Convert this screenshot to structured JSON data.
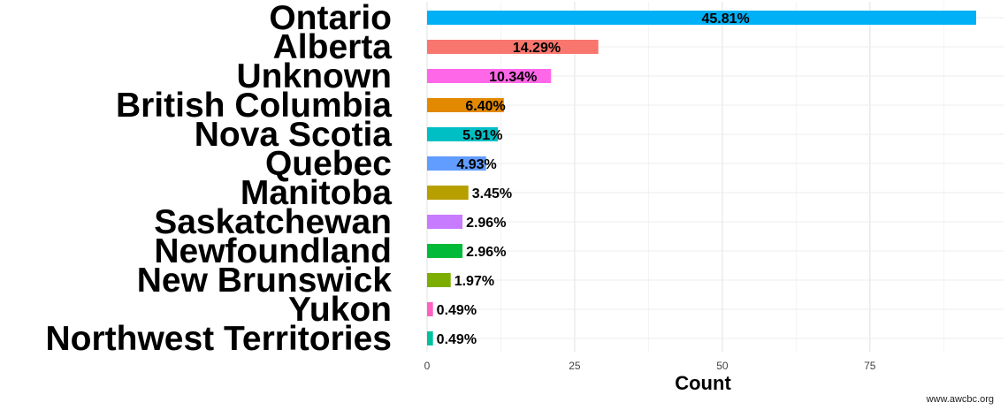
{
  "chart_data": {
    "type": "bar",
    "orientation": "horizontal",
    "xlabel": "Count",
    "xlim": [
      0,
      93
    ],
    "xticks": [
      0,
      25,
      50,
      75
    ],
    "grid": true,
    "categories": [
      "Ontario",
      "Alberta",
      "Unknown",
      "British Columbia",
      "Nova Scotia",
      "Quebec",
      "Manitoba",
      "Saskatchewan",
      "Newfoundland",
      "New Brunswick",
      "Yukon",
      "Northwest Territories"
    ],
    "values": [
      93,
      29,
      21,
      13,
      12,
      10,
      7,
      6,
      6,
      4,
      1,
      1
    ],
    "labels": [
      "45.81%",
      "14.29%",
      "10.34%",
      "6.40%",
      "5.91%",
      "4.93%",
      "3.45%",
      "2.96%",
      "2.96%",
      "1.97%",
      "0.49%",
      "0.49%"
    ],
    "colors": [
      "#00B0F6",
      "#F8766D",
      "#FF67E9",
      "#E38900",
      "#00BFC4",
      "#619CFF",
      "#B79F00",
      "#C77CFF",
      "#00BA38",
      "#7CAE00",
      "#FF61C3",
      "#00C19F"
    ]
  },
  "footer": {
    "source": "www.awcbc.org"
  }
}
